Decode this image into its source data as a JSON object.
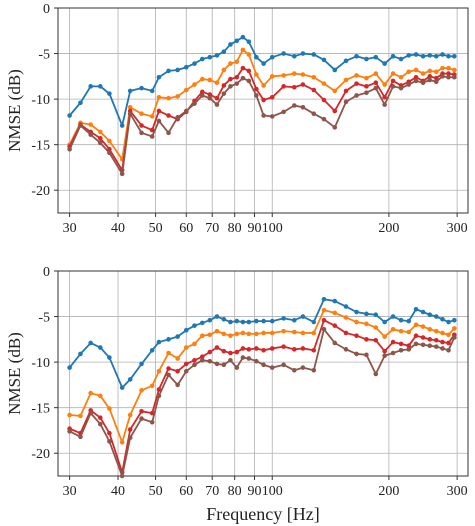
{
  "chart_data": [
    {
      "type": "line",
      "ylabel": "NMSE (dB)",
      "xlabel": "",
      "xscale": "log",
      "xlim": [
        28,
        320
      ],
      "ylim": [
        -22.5,
        0
      ],
      "xticks": [
        30,
        40,
        50,
        60,
        70,
        80,
        90,
        100,
        200,
        300
      ],
      "xtick_labels": [
        "30",
        "40",
        "50",
        "60",
        "70",
        "80",
        "90",
        "100",
        "200",
        "300"
      ],
      "yticks": [
        0,
        -5,
        -10,
        -15,
        -20
      ],
      "ytick_labels": [
        "0",
        "-5",
        "-10",
        "-15",
        "-20"
      ],
      "grid": true,
      "x": [
        30,
        32,
        34,
        36,
        38,
        41,
        43,
        46,
        49,
        51,
        54,
        57,
        60,
        63,
        66,
        69,
        72,
        75,
        78,
        81,
        84,
        87,
        91,
        95,
        100,
        107,
        114,
        120,
        128,
        136,
        145,
        155,
        165,
        175,
        185,
        195,
        205,
        215,
        225,
        235,
        245,
        255,
        265,
        275,
        285,
        295
      ],
      "series": [
        {
          "color": "#1f77b4",
          "values": [
            -11.8,
            -10.4,
            -8.6,
            -8.6,
            -9.4,
            -12.9,
            -9.1,
            -8.8,
            -9.1,
            -7.6,
            -6.9,
            -6.8,
            -6.5,
            -6.1,
            -5.6,
            -5.4,
            -5.2,
            -4.8,
            -4.0,
            -3.6,
            -3.2,
            -3.7,
            -5.4,
            -6.1,
            -5.4,
            -5.0,
            -5.3,
            -5.0,
            -5.1,
            -5.7,
            -6.8,
            -5.8,
            -5.3,
            -5.6,
            -5.4,
            -6.1,
            -5.3,
            -5.6,
            -5.2,
            -5.1,
            -5.3,
            -5.2,
            -5.3,
            -5.1,
            -5.3,
            -5.3
          ]
        },
        {
          "color": "#ff7f0e",
          "values": [
            -15.0,
            -12.6,
            -12.8,
            -13.6,
            -14.6,
            -16.6,
            -10.9,
            -11.6,
            -11.9,
            -9.8,
            -9.9,
            -9.7,
            -9.0,
            -8.4,
            -7.8,
            -7.9,
            -8.2,
            -6.8,
            -6.1,
            -5.9,
            -4.6,
            -5.1,
            -7.3,
            -8.5,
            -7.5,
            -7.4,
            -7.2,
            -7.3,
            -7.6,
            -8.3,
            -9.1,
            -7.9,
            -7.4,
            -7.7,
            -7.2,
            -8.4,
            -7.2,
            -7.6,
            -7.0,
            -6.8,
            -7.2,
            -6.9,
            -7.0,
            -6.6,
            -6.6,
            -6.8
          ]
        },
        {
          "color": "#d62728",
          "values": [
            -15.2,
            -12.8,
            -13.6,
            -14.3,
            -15.5,
            -17.8,
            -11.3,
            -12.9,
            -13.4,
            -11.3,
            -11.8,
            -12.2,
            -11.4,
            -10.2,
            -9.2,
            -9.5,
            -9.9,
            -8.5,
            -7.8,
            -7.6,
            -6.6,
            -6.9,
            -8.9,
            -10.1,
            -9.8,
            -8.6,
            -8.7,
            -8.4,
            -9.0,
            -10.1,
            -11.3,
            -9.1,
            -8.3,
            -8.6,
            -8.2,
            -9.8,
            -8.0,
            -8.5,
            -8.1,
            -7.6,
            -8.0,
            -7.5,
            -7.7,
            -7.2,
            -7.2,
            -7.3
          ]
        },
        {
          "color": "#8c564b",
          "values": [
            -15.5,
            -12.9,
            -13.9,
            -14.8,
            -15.9,
            -18.2,
            -11.6,
            -13.7,
            -14.1,
            -12.4,
            -13.7,
            -12.0,
            -11.3,
            -10.5,
            -9.6,
            -9.9,
            -10.6,
            -9.4,
            -8.6,
            -8.3,
            -7.7,
            -8.0,
            -9.6,
            -11.8,
            -11.9,
            -11.4,
            -10.7,
            -10.9,
            -11.6,
            -12.2,
            -13.1,
            -10.3,
            -9.6,
            -9.3,
            -8.8,
            -10.6,
            -8.6,
            -8.8,
            -8.4,
            -8.0,
            -8.2,
            -7.9,
            -8.1,
            -7.5,
            -7.6,
            -7.6
          ]
        }
      ]
    },
    {
      "type": "line",
      "ylabel": "NMSE (dB)",
      "xlabel": "Frequency [Hz]",
      "xscale": "log",
      "xlim": [
        28,
        320
      ],
      "ylim": [
        -22.5,
        0
      ],
      "xticks": [
        30,
        40,
        50,
        60,
        70,
        80,
        90,
        100,
        200,
        300
      ],
      "xtick_labels": [
        "30",
        "40",
        "50",
        "60",
        "70",
        "80",
        "90",
        "100",
        "200",
        "300"
      ],
      "yticks": [
        0,
        -5,
        -10,
        -15,
        -20
      ],
      "ytick_labels": [
        "0",
        "-5",
        "-10",
        "-15",
        "-20"
      ],
      "grid": true,
      "x": [
        30,
        32,
        34,
        36,
        38,
        41,
        43,
        46,
        49,
        51,
        54,
        57,
        60,
        63,
        66,
        69,
        72,
        75,
        78,
        81,
        84,
        87,
        91,
        95,
        100,
        107,
        114,
        120,
        128,
        136,
        145,
        155,
        165,
        175,
        185,
        195,
        205,
        215,
        225,
        235,
        245,
        255,
        265,
        275,
        285,
        295
      ],
      "series": [
        {
          "color": "#1f77b4",
          "values": [
            -10.6,
            -9.1,
            -7.9,
            -8.4,
            -9.5,
            -12.8,
            -11.9,
            -10.2,
            -8.7,
            -7.8,
            -7.5,
            -7.2,
            -6.5,
            -6.0,
            -5.7,
            -5.4,
            -5.0,
            -5.3,
            -5.6,
            -5.5,
            -5.6,
            -5.6,
            -5.5,
            -5.5,
            -5.5,
            -5.2,
            -5.4,
            -5.0,
            -5.6,
            -3.1,
            -3.3,
            -3.9,
            -4.5,
            -4.7,
            -4.8,
            -5.6,
            -5.0,
            -5.4,
            -5.5,
            -4.2,
            -4.5,
            -4.8,
            -5.0,
            -5.3,
            -5.6,
            -5.4
          ]
        },
        {
          "color": "#ff7f0e",
          "values": [
            -15.8,
            -15.9,
            -13.4,
            -13.7,
            -15.1,
            -18.8,
            -15.8,
            -13.1,
            -12.6,
            -11.0,
            -9.0,
            -9.6,
            -8.4,
            -8.0,
            -7.1,
            -7.0,
            -6.6,
            -6.9,
            -7.1,
            -6.9,
            -6.8,
            -6.9,
            -6.9,
            -6.8,
            -6.8,
            -6.6,
            -6.7,
            -6.8,
            -6.8,
            -4.3,
            -4.6,
            -5.1,
            -5.6,
            -5.8,
            -6.2,
            -7.2,
            -6.4,
            -6.6,
            -6.7,
            -5.9,
            -6.1,
            -6.4,
            -6.6,
            -6.8,
            -7.0,
            -6.3
          ]
        },
        {
          "color": "#d62728",
          "values": [
            -17.3,
            -17.8,
            -15.3,
            -16.1,
            -17.8,
            -22.1,
            -17.4,
            -15.4,
            -15.6,
            -13.0,
            -10.7,
            -11.0,
            -10.2,
            -9.8,
            -9.4,
            -8.9,
            -8.4,
            -8.8,
            -9.0,
            -8.9,
            -8.5,
            -8.6,
            -8.5,
            -8.7,
            -8.5,
            -8.3,
            -8.6,
            -8.5,
            -8.7,
            -5.4,
            -6.0,
            -6.8,
            -7.1,
            -7.5,
            -7.6,
            -8.8,
            -7.8,
            -8.0,
            -8.2,
            -7.1,
            -7.3,
            -7.5,
            -7.6,
            -7.8,
            -7.9,
            -7.0
          ]
        },
        {
          "color": "#8c564b",
          "values": [
            -17.6,
            -18.2,
            -15.6,
            -16.8,
            -18.7,
            -22.5,
            -18.3,
            -16.2,
            -16.6,
            -13.7,
            -11.4,
            -12.5,
            -11.0,
            -10.3,
            -9.8,
            -9.9,
            -10.2,
            -10.3,
            -9.8,
            -10.6,
            -9.5,
            -9.6,
            -9.9,
            -10.3,
            -10.6,
            -10.3,
            -10.9,
            -10.6,
            -10.9,
            -6.4,
            -7.9,
            -8.6,
            -9.1,
            -9.2,
            -11.3,
            -9.3,
            -9.0,
            -8.7,
            -8.6,
            -8.0,
            -8.1,
            -8.2,
            -8.3,
            -8.5,
            -8.7,
            -7.3
          ]
        }
      ]
    }
  ]
}
